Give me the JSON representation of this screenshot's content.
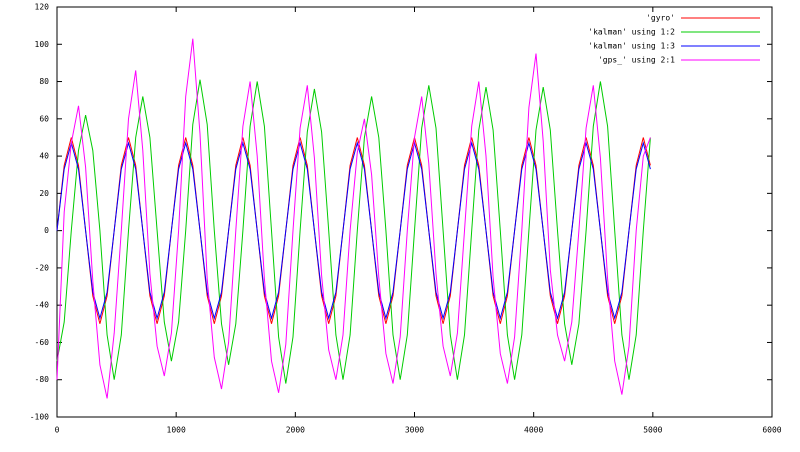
{
  "chart_data": {
    "type": "line",
    "x": [
      0,
      60,
      120,
      180,
      240,
      300,
      360,
      420,
      480,
      540,
      600,
      660,
      720,
      780,
      840,
      900,
      960,
      1020,
      1080,
      1140,
      1200,
      1260,
      1320,
      1380,
      1440,
      1500,
      1560,
      1620,
      1680,
      1740,
      1800,
      1860,
      1920,
      1980,
      2040,
      2100,
      2160,
      2220,
      2280,
      2340,
      2400,
      2460,
      2520,
      2580,
      2640,
      2700,
      2760,
      2820,
      2880,
      2940,
      3000,
      3060,
      3120,
      3180,
      3240,
      3300,
      3360,
      3420,
      3480,
      3540,
      3600,
      3660,
      3720,
      3780,
      3840,
      3900,
      3960,
      4020,
      4080,
      4140,
      4200,
      4260,
      4320,
      4380,
      4440,
      4500,
      4560,
      4620,
      4680,
      4740,
      4800,
      4860,
      4920,
      4980
    ],
    "series": [
      {
        "name": "'gyro'",
        "color": "#ff0000",
        "values": [
          0,
          35,
          50,
          35,
          0,
          -35,
          -50,
          -35,
          0,
          35,
          50,
          35,
          0,
          -35,
          -50,
          -35,
          0,
          35,
          50,
          35,
          0,
          -35,
          -50,
          -35,
          0,
          35,
          50,
          35,
          0,
          -35,
          -50,
          -35,
          0,
          35,
          50,
          35,
          0,
          -35,
          -50,
          -35,
          0,
          35,
          50,
          35,
          0,
          -35,
          -50,
          -35,
          0,
          35,
          50,
          35,
          0,
          -35,
          -50,
          -35,
          0,
          35,
          50,
          35,
          0,
          -35,
          -50,
          -35,
          0,
          35,
          50,
          35,
          0,
          -35,
          -50,
          -35,
          0,
          35,
          50,
          35,
          0,
          -35,
          -50,
          -35,
          0,
          35,
          50,
          35
        ]
      },
      {
        "name": "'kalman' using 1:2",
        "color": "#00cc00",
        "values": [
          -70,
          -49,
          0,
          43,
          62,
          43,
          0,
          -56,
          -80,
          -56,
          0,
          50,
          72,
          50,
          0,
          -49,
          -70,
          -49,
          0,
          57,
          81,
          57,
          0,
          -50,
          -72,
          -50,
          0,
          56,
          80,
          56,
          0,
          -57,
          -82,
          -57,
          0,
          53,
          76,
          53,
          0,
          -56,
          -80,
          -56,
          0,
          50,
          72,
          50,
          0,
          -56,
          -80,
          -56,
          0,
          55,
          78,
          55,
          0,
          -56,
          -80,
          -56,
          0,
          54,
          77,
          54,
          0,
          -56,
          -80,
          -56,
          0,
          54,
          77,
          54,
          0,
          -50,
          -72,
          -50,
          0,
          56,
          80,
          56,
          0,
          -56,
          -80,
          -56,
          0,
          50
        ]
      },
      {
        "name": "'kalman' using  1:3",
        "color": "#0000ff",
        "values": [
          0,
          33,
          47,
          33,
          0,
          -33,
          -47,
          -33,
          0,
          33,
          47,
          33,
          0,
          -33,
          -47,
          -33,
          0,
          33,
          47,
          33,
          0,
          -33,
          -47,
          -33,
          0,
          33,
          47,
          33,
          0,
          -33,
          -47,
          -33,
          0,
          33,
          47,
          33,
          0,
          -33,
          -47,
          -33,
          0,
          33,
          47,
          33,
          0,
          -33,
          -47,
          -33,
          0,
          33,
          47,
          33,
          0,
          -33,
          -47,
          -33,
          0,
          33,
          47,
          33,
          0,
          -33,
          -47,
          -33,
          0,
          33,
          47,
          33,
          0,
          -33,
          -47,
          -33,
          0,
          33,
          47,
          33,
          0,
          -33,
          -47,
          -33,
          0,
          33,
          47,
          33
        ]
      },
      {
        "name": "'gps_' using 2:1",
        "color": "#ff00ff",
        "values": [
          -80,
          10,
          47,
          67,
          34,
          -27,
          -72,
          -90,
          -55,
          0,
          60,
          86,
          43,
          -23,
          -62,
          -78,
          -55,
          0,
          72,
          103,
          52,
          -26,
          -68,
          -85,
          -60,
          0,
          56,
          80,
          40,
          -26,
          -70,
          -87,
          -61,
          0,
          55,
          78,
          39,
          -24,
          -64,
          -80,
          -56,
          0,
          42,
          60,
          30,
          -25,
          -66,
          -82,
          -57,
          0,
          50,
          72,
          36,
          -23,
          -62,
          -78,
          -55,
          0,
          56,
          80,
          40,
          -25,
          -66,
          -82,
          -57,
          0,
          66,
          95,
          48,
          -21,
          -56,
          -70,
          -49,
          0,
          55,
          78,
          39,
          -26,
          -70,
          -88,
          -62,
          0,
          40,
          50
        ]
      }
    ],
    "xlim": [
      0,
      6000
    ],
    "xticks": [
      0,
      1000,
      2000,
      3000,
      4000,
      5000,
      6000
    ],
    "ylim": [
      -100,
      120
    ],
    "yticks": [
      -100,
      -80,
      -60,
      -40,
      -20,
      0,
      20,
      40,
      60,
      80,
      100,
      120
    ],
    "legend": "top-right"
  }
}
